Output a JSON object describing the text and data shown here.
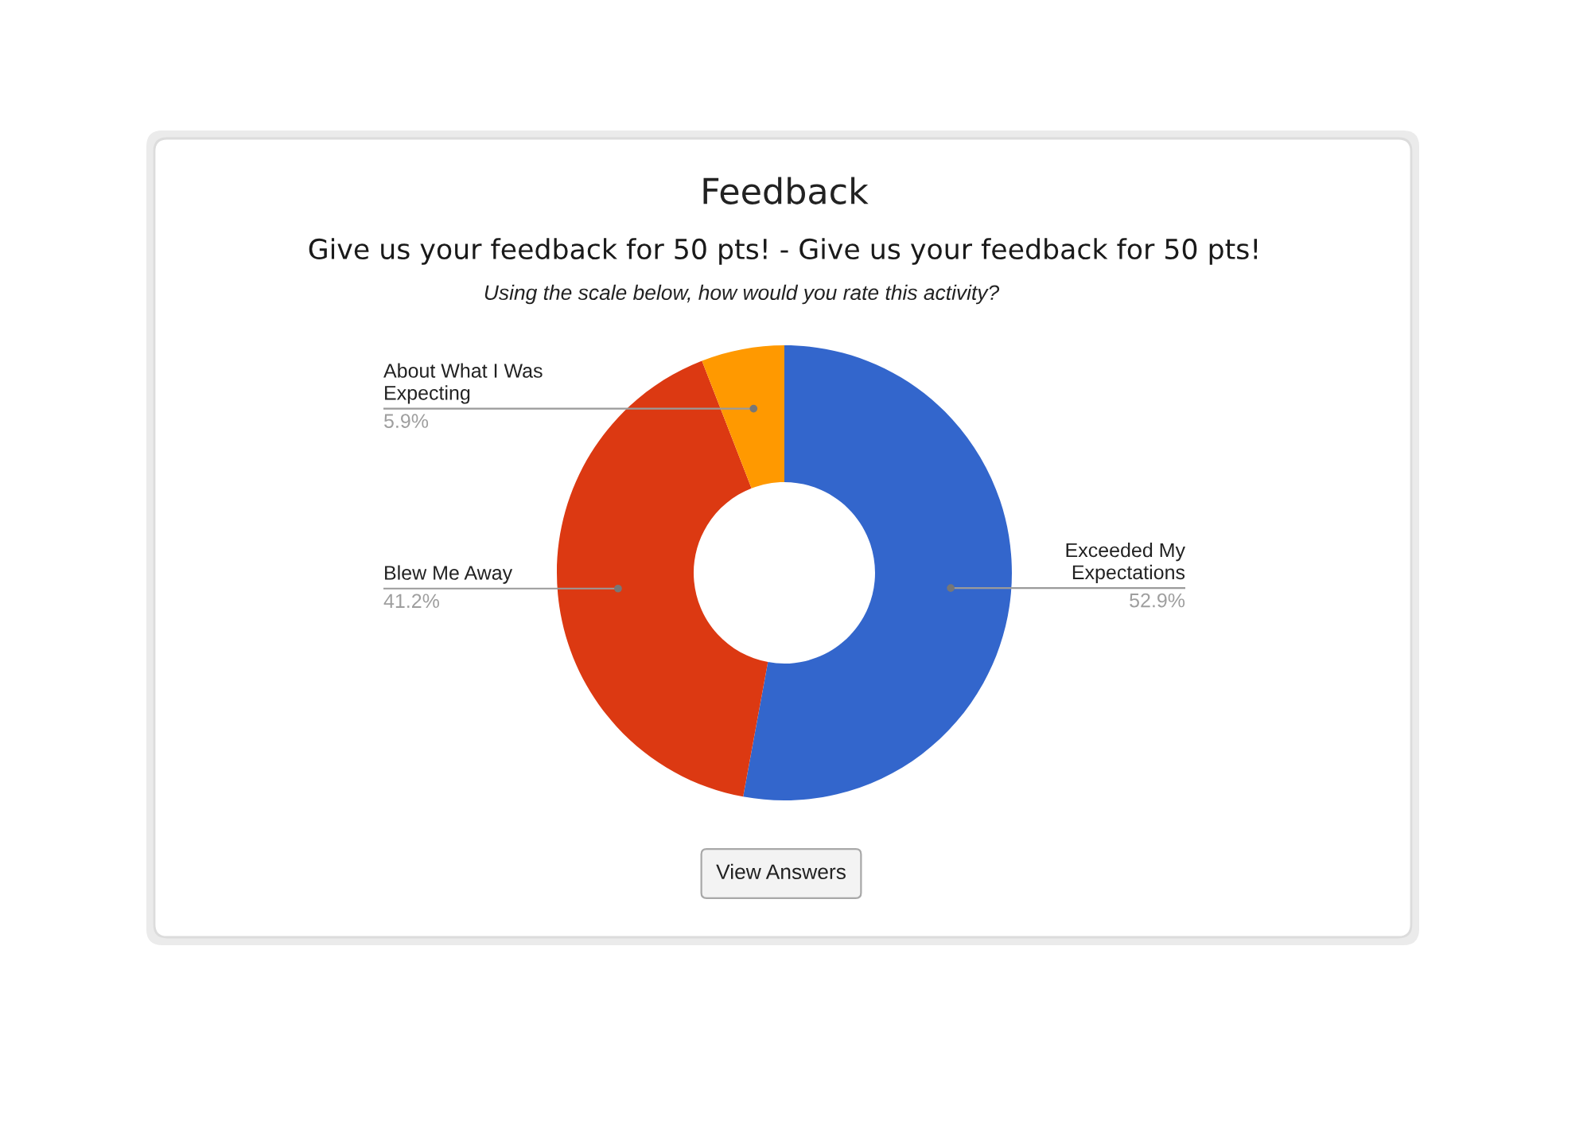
{
  "chart_data": {
    "type": "donut",
    "title": "Feedback",
    "subtitle": "Give us your feedback for 50 pts! - Give us your feedback for 50 pts!",
    "categories": [
      "Exceeded My Expectations",
      "Blew Me Away",
      "About What I Was Expecting"
    ],
    "values": [
      52.9,
      41.2,
      5.9
    ],
    "colors": [
      "#3366cc",
      "#dc3912",
      "#ff9900"
    ],
    "value_labels": [
      "52.9%",
      "41.2%",
      "5.9%"
    ],
    "annotations": [
      "Using the scale below, how would you rate this activity?",
      "View Answers"
    ]
  }
}
